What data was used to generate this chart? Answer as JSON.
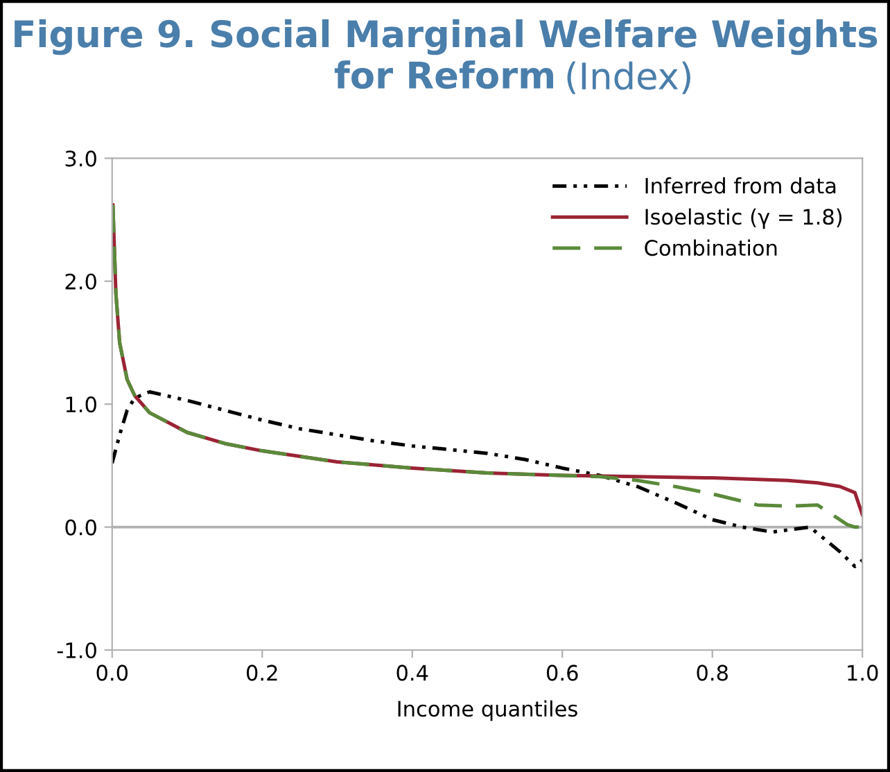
{
  "chart_data": {
    "type": "line",
    "title": "Figure 9. Social Marginal Welfare Weights for Reform",
    "subtitle": "(Index)",
    "xlabel": "Income quantiles",
    "xlim": [
      0,
      1
    ],
    "xticks": [
      {
        "value": 0,
        "label": "0.0"
      },
      {
        "value": 0.2,
        "label": "0.2"
      },
      {
        "value": 0.4,
        "label": "0.4"
      },
      {
        "value": 0.6,
        "label": "0.6"
      },
      {
        "value": 0.8,
        "label": "0.8"
      },
      {
        "value": 1,
        "label": "1.0"
      }
    ],
    "ylim": [
      -1,
      3
    ],
    "yticks": [
      {
        "value": -1,
        "label": "-1.0"
      },
      {
        "value": 0,
        "label": "0.0"
      },
      {
        "value": 1,
        "label": "1.0"
      },
      {
        "value": 2,
        "label": "2.0"
      },
      {
        "value": 3,
        "label": "3.0"
      }
    ],
    "grid": false,
    "legend": "top right",
    "ref_lines": [
      {
        "axis": "y",
        "value": 0,
        "label": null,
        "color": "#b0b0b0"
      }
    ],
    "series": [
      {
        "name": "Inferred from data",
        "color": "#000000",
        "line_style": "dashdot",
        "x": [
          0,
          0.01,
          0.02,
          0.03,
          0.05,
          0.1,
          0.15,
          0.2,
          0.25,
          0.3,
          0.35,
          0.4,
          0.45,
          0.5,
          0.55,
          0.6,
          0.65,
          0.7,
          0.75,
          0.8,
          0.84,
          0.88,
          0.93,
          0.95,
          0.97,
          0.99,
          1.0
        ],
        "values": [
          0.52,
          0.75,
          0.95,
          1.05,
          1.1,
          1.03,
          0.95,
          0.87,
          0.8,
          0.75,
          0.7,
          0.66,
          0.63,
          0.6,
          0.55,
          0.48,
          0.42,
          0.33,
          0.2,
          0.06,
          0.0,
          -0.04,
          0.0,
          -0.1,
          -0.2,
          -0.32,
          -0.27
        ]
      },
      {
        "name": "Isoelastic (γ = 1.8)",
        "color": "#9b2335",
        "line_style": "solid",
        "x": [
          0.001,
          0.005,
          0.01,
          0.02,
          0.03,
          0.05,
          0.1,
          0.15,
          0.2,
          0.3,
          0.4,
          0.5,
          0.6,
          0.7,
          0.8,
          0.9,
          0.94,
          0.97,
          0.99,
          1.0
        ],
        "values": [
          2.62,
          1.9,
          1.5,
          1.2,
          1.07,
          0.93,
          0.77,
          0.68,
          0.62,
          0.53,
          0.48,
          0.44,
          0.42,
          0.41,
          0.4,
          0.38,
          0.36,
          0.33,
          0.28,
          0.1
        ]
      },
      {
        "name": "Combination",
        "color": "#5a8a3a",
        "line_style": "dashed",
        "x": [
          0.001,
          0.005,
          0.01,
          0.02,
          0.03,
          0.05,
          0.1,
          0.15,
          0.2,
          0.3,
          0.4,
          0.5,
          0.6,
          0.65,
          0.7,
          0.75,
          0.8,
          0.86,
          0.9,
          0.94,
          0.96,
          0.98,
          0.99,
          1.0
        ],
        "values": [
          2.62,
          1.9,
          1.5,
          1.2,
          1.07,
          0.93,
          0.77,
          0.68,
          0.62,
          0.53,
          0.48,
          0.44,
          0.42,
          0.41,
          0.38,
          0.33,
          0.27,
          0.18,
          0.17,
          0.18,
          0.1,
          0.02,
          0.0,
          0.0
        ]
      }
    ]
  }
}
